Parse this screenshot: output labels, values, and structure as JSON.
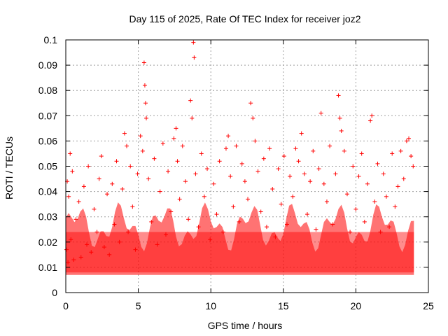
{
  "chart_data": {
    "type": "scatter",
    "title": "Day 115 of 2025, Rate Of TEC Index for receiver joz2",
    "xlabel": "GPS time / hours",
    "ylabel": "ROTI / TECUs",
    "xlim": [
      0,
      25
    ],
    "ylim": [
      0,
      0.1
    ],
    "x_ticks": [
      0,
      5,
      10,
      15,
      20,
      25
    ],
    "x_tick_labels": [
      "0",
      "5",
      "10",
      "15",
      "20",
      "25"
    ],
    "y_ticks": [
      0,
      0.01,
      0.02,
      0.03,
      0.04,
      0.05,
      0.06,
      0.07,
      0.08,
      0.09,
      0.1
    ],
    "y_tick_labels": [
      "0",
      "0.01",
      "0.02",
      "0.03",
      "0.04",
      "0.05",
      "0.06",
      "0.07",
      "0.08",
      "0.09",
      "0.1"
    ],
    "grid": true,
    "marker": "+",
    "series": [
      {
        "name": "ROTI",
        "color": "#ff0000",
        "x": [
          0.05,
          0.1,
          0.15,
          0.2,
          0.3,
          0.35,
          0.45,
          0.55,
          0.7,
          0.9,
          1.05,
          1.25,
          1.45,
          1.55,
          1.75,
          1.95,
          2.15,
          2.3,
          2.45,
          2.65,
          2.85,
          3.0,
          3.2,
          3.35,
          3.5,
          3.7,
          3.9,
          4.05,
          4.2,
          4.3,
          4.45,
          4.6,
          4.8,
          4.95,
          5.15,
          5.3,
          5.4,
          5.45,
          5.5,
          5.55,
          5.7,
          5.9,
          6.1,
          6.3,
          6.5,
          6.7,
          6.9,
          7.05,
          7.25,
          7.45,
          7.6,
          7.7,
          7.85,
          8.05,
          8.25,
          8.45,
          8.6,
          8.7,
          8.8,
          8.85,
          8.95,
          9.15,
          9.35,
          9.55,
          9.75,
          9.95,
          10.2,
          10.4,
          10.6,
          10.85,
          11.05,
          11.2,
          11.35,
          11.55,
          11.75,
          11.95,
          12.15,
          12.35,
          12.55,
          12.75,
          12.9,
          13.05,
          13.25,
          13.45,
          13.65,
          13.85,
          14.05,
          14.25,
          14.45,
          14.65,
          14.85,
          15.05,
          15.25,
          15.45,
          15.65,
          15.85,
          16.05,
          16.25,
          16.45,
          16.65,
          16.85,
          17.05,
          17.25,
          17.45,
          17.6,
          17.8,
          18.0,
          18.2,
          18.4,
          18.6,
          18.8,
          18.9,
          19.0,
          19.2,
          19.4,
          19.6,
          19.8,
          20.0,
          20.2,
          20.4,
          20.6,
          20.8,
          21.0,
          21.1,
          21.3,
          21.5,
          21.7,
          21.9,
          22.1,
          22.3,
          22.5,
          22.7,
          22.9,
          23.1,
          23.3,
          23.5,
          23.65,
          23.8,
          23.95
        ],
        "y": [
          0.017,
          0.044,
          0.012,
          0.038,
          0.055,
          0.021,
          0.048,
          0.013,
          0.029,
          0.036,
          0.014,
          0.042,
          0.019,
          0.05,
          0.016,
          0.033,
          0.024,
          0.045,
          0.054,
          0.018,
          0.039,
          0.015,
          0.043,
          0.027,
          0.052,
          0.02,
          0.041,
          0.063,
          0.058,
          0.024,
          0.05,
          0.034,
          0.017,
          0.047,
          0.062,
          0.056,
          0.091,
          0.082,
          0.075,
          0.069,
          0.045,
          0.028,
          0.053,
          0.019,
          0.04,
          0.059,
          0.023,
          0.048,
          0.032,
          0.061,
          0.065,
          0.052,
          0.037,
          0.058,
          0.044,
          0.029,
          0.076,
          0.069,
          0.099,
          0.093,
          0.047,
          0.026,
          0.055,
          0.038,
          0.049,
          0.021,
          0.043,
          0.031,
          0.052,
          0.024,
          0.057,
          0.062,
          0.046,
          0.034,
          0.058,
          0.028,
          0.051,
          0.044,
          0.037,
          0.075,
          0.069,
          0.06,
          0.048,
          0.032,
          0.053,
          0.026,
          0.057,
          0.041,
          0.022,
          0.049,
          0.035,
          0.054,
          0.027,
          0.046,
          0.038,
          0.057,
          0.052,
          0.063,
          0.047,
          0.031,
          0.044,
          0.056,
          0.025,
          0.049,
          0.071,
          0.043,
          0.036,
          0.058,
          0.027,
          0.047,
          0.078,
          0.069,
          0.064,
          0.056,
          0.039,
          0.024,
          0.05,
          0.033,
          0.046,
          0.055,
          0.028,
          0.043,
          0.068,
          0.07,
          0.036,
          0.051,
          0.024,
          0.047,
          0.038,
          0.026,
          0.055,
          0.034,
          0.042,
          0.056,
          0.045,
          0.06,
          0.061,
          0.054,
          0.05
        ]
      }
    ]
  }
}
